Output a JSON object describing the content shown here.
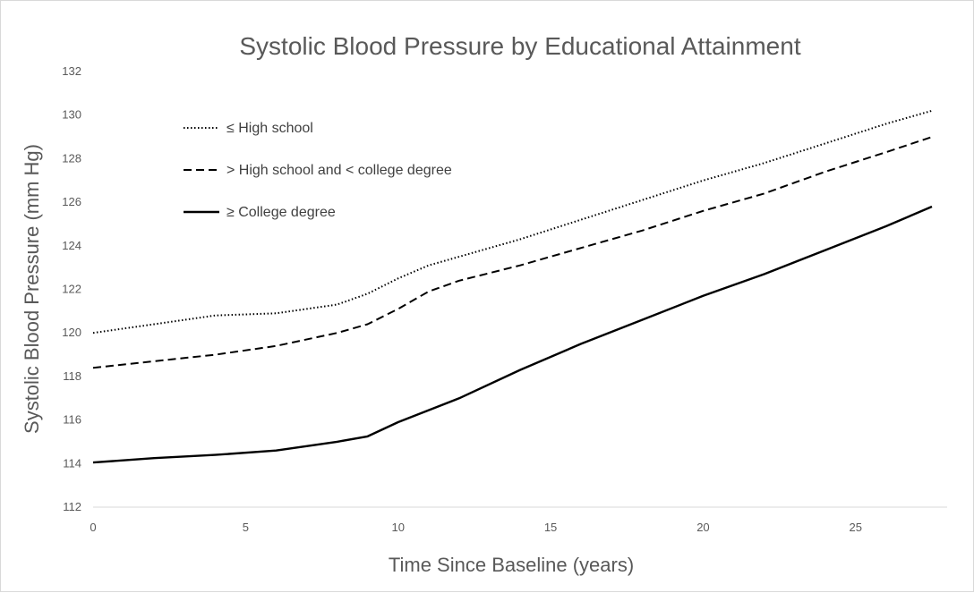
{
  "chart_data": {
    "type": "line",
    "title": "Systolic Blood Pressure by Educational Attainment",
    "xlabel": "Time Since Baseline (years)",
    "ylabel": "Systolic Blood Pressure (mm Hg)",
    "xlim": [
      0,
      28
    ],
    "ylim": [
      112,
      132
    ],
    "x_ticks": [
      "0",
      "5",
      "10",
      "15",
      "20",
      "25"
    ],
    "y_ticks": [
      "112",
      "114",
      "116",
      "118",
      "120",
      "122",
      "124",
      "126",
      "128",
      "130",
      "132"
    ],
    "grid": false,
    "legend_position": "top-left",
    "series": [
      {
        "name": "≤ High school",
        "style": "dotted",
        "color": "#000000",
        "x": [
          0,
          2,
          4,
          6,
          8,
          9,
          10,
          11,
          12,
          14,
          16,
          18,
          20,
          22,
          24,
          26,
          27.5
        ],
        "y": [
          120.0,
          120.4,
          120.8,
          120.9,
          121.3,
          121.8,
          122.5,
          123.1,
          123.5,
          124.3,
          125.2,
          126.1,
          127.0,
          127.8,
          128.7,
          129.6,
          130.2
        ]
      },
      {
        "name": "> High school and < college degree",
        "style": "dashed",
        "color": "#000000",
        "x": [
          0,
          2,
          4,
          6,
          8,
          9,
          10,
          11,
          12,
          14,
          16,
          18,
          20,
          22,
          24,
          26,
          27.5
        ],
        "y": [
          118.4,
          118.7,
          119.0,
          119.4,
          120.0,
          120.4,
          121.1,
          121.9,
          122.4,
          123.1,
          123.9,
          124.7,
          125.6,
          126.4,
          127.4,
          128.3,
          129.0
        ]
      },
      {
        "name": "≥ College degree",
        "style": "solid",
        "color": "#000000",
        "x": [
          0,
          2,
          4,
          6,
          8,
          9,
          10,
          12,
          14,
          16,
          18,
          20,
          22,
          24,
          26,
          27.5
        ],
        "y": [
          114.05,
          114.25,
          114.4,
          114.6,
          115.0,
          115.25,
          115.9,
          117.0,
          118.3,
          119.5,
          120.6,
          121.7,
          122.7,
          123.8,
          124.9,
          125.8
        ]
      }
    ]
  }
}
